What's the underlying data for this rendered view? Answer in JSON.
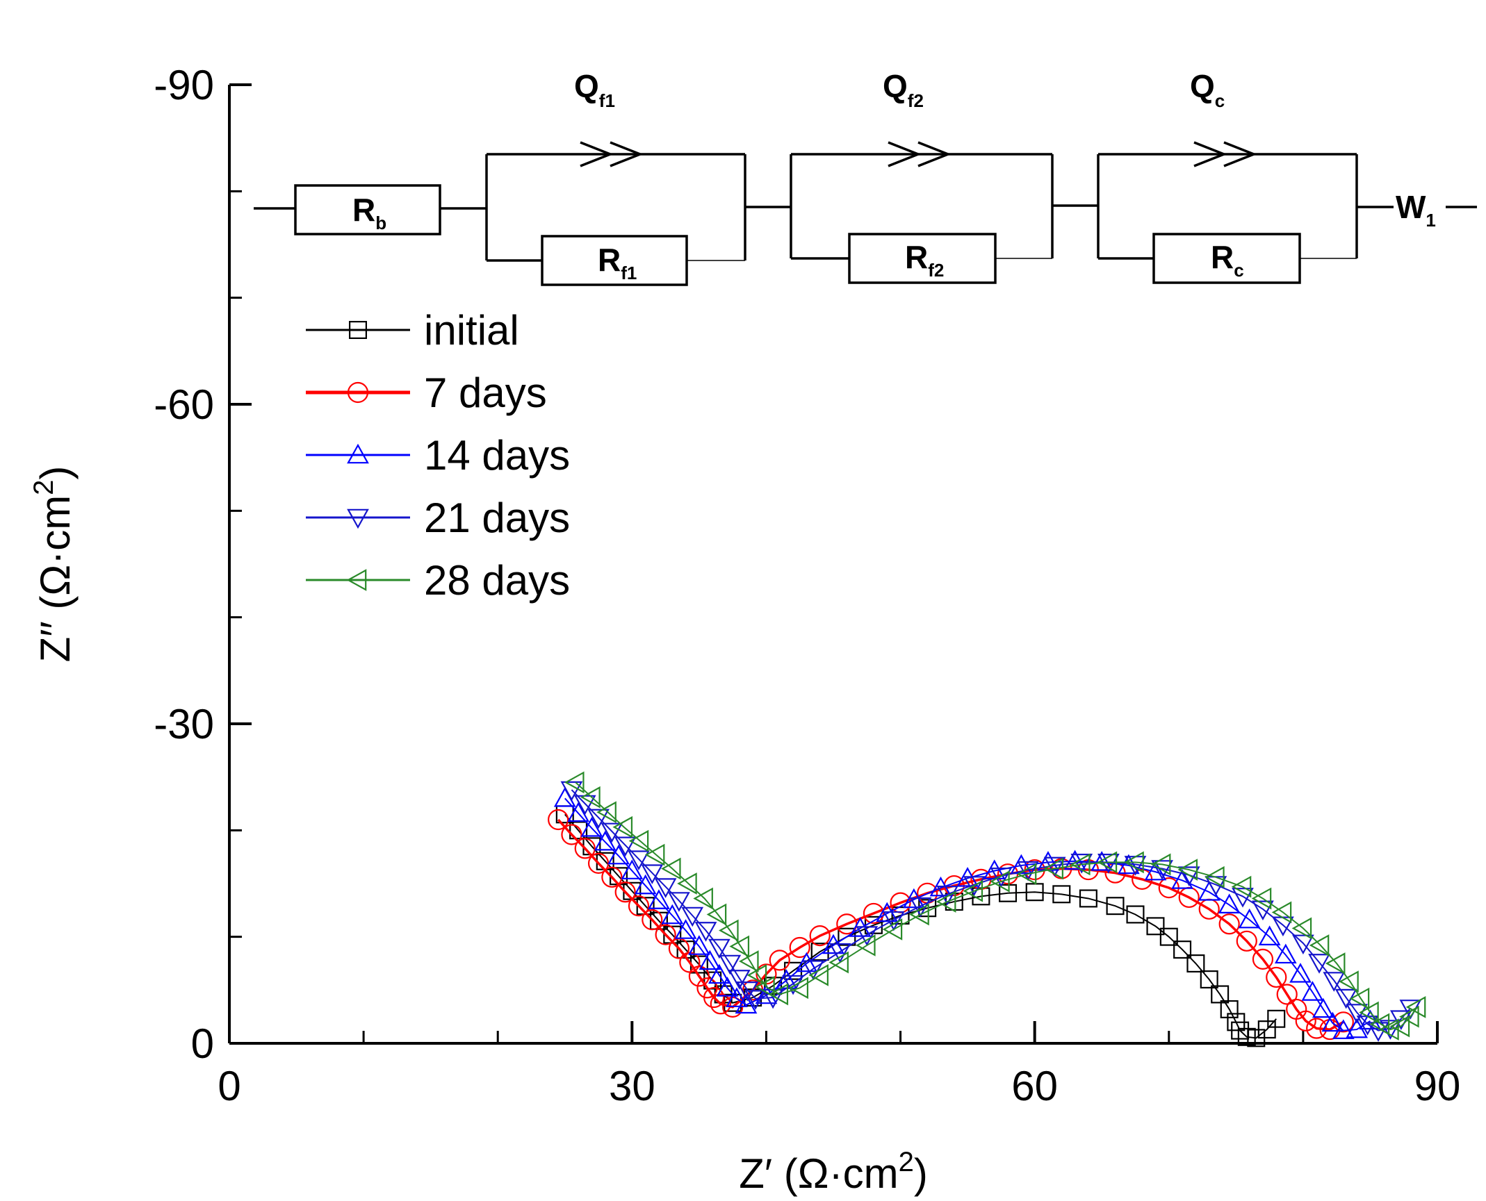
{
  "chart_data": {
    "type": "scatter",
    "title": "",
    "xlabel": "Z′ (Ω·cm²)",
    "ylabel": "Z′′ (Ω·cm²)",
    "xlim": [
      0,
      90
    ],
    "ylim": [
      0,
      -90
    ],
    "x_ticks": [
      0,
      30,
      60,
      90
    ],
    "y_ticks": [
      0,
      -30,
      -60,
      -90
    ],
    "x_tick_labels": [
      "0",
      "30",
      "60",
      "90"
    ],
    "y_tick_labels": [
      "0",
      "-30",
      "-60",
      "-90"
    ],
    "legend_position": "upper-left",
    "series": [
      {
        "name": "initial",
        "color": "#000000",
        "marker": "square",
        "points": [
          [
            25.0,
            -21.5
          ],
          [
            26.0,
            -20.0
          ],
          [
            27.0,
            -18.5
          ],
          [
            28.0,
            -17.1
          ],
          [
            29.0,
            -15.7
          ],
          [
            30.0,
            -14.3
          ],
          [
            31.0,
            -12.9
          ],
          [
            32.0,
            -11.5
          ],
          [
            33.0,
            -10.2
          ],
          [
            34.0,
            -8.8
          ],
          [
            35.0,
            -7.4
          ],
          [
            36.0,
            -5.9
          ],
          [
            36.8,
            -4.6
          ],
          [
            37.5,
            -3.8
          ],
          [
            39.0,
            -4.3
          ],
          [
            40.5,
            -5.4
          ],
          [
            42.0,
            -6.8
          ],
          [
            44.0,
            -8.6
          ],
          [
            46.0,
            -10.0
          ],
          [
            48.0,
            -11.1
          ],
          [
            50.0,
            -12.0
          ],
          [
            52.0,
            -12.7
          ],
          [
            54.0,
            -13.3
          ],
          [
            56.0,
            -13.8
          ],
          [
            58.0,
            -14.1
          ],
          [
            60.0,
            -14.2
          ],
          [
            62.0,
            -14.0
          ],
          [
            64.0,
            -13.6
          ],
          [
            66.0,
            -12.9
          ],
          [
            67.5,
            -12.1
          ],
          [
            69.0,
            -11.0
          ],
          [
            70.0,
            -10.0
          ],
          [
            71.0,
            -8.8
          ],
          [
            72.0,
            -7.5
          ],
          [
            73.0,
            -6.0
          ],
          [
            73.8,
            -4.6
          ],
          [
            74.5,
            -3.2
          ],
          [
            75.0,
            -2.0
          ],
          [
            75.3,
            -1.2
          ],
          [
            75.8,
            -0.6
          ],
          [
            76.5,
            -0.5
          ],
          [
            77.3,
            -1.3
          ],
          [
            78.0,
            -2.3
          ]
        ]
      },
      {
        "name": "7 days",
        "color": "#ff0000",
        "marker": "circle",
        "points": [
          [
            24.5,
            -21.0
          ],
          [
            25.5,
            -19.6
          ],
          [
            26.5,
            -18.3
          ],
          [
            27.5,
            -16.9
          ],
          [
            28.5,
            -15.6
          ],
          [
            29.5,
            -14.2
          ],
          [
            30.5,
            -12.9
          ],
          [
            31.5,
            -11.6
          ],
          [
            32.5,
            -10.2
          ],
          [
            33.5,
            -8.9
          ],
          [
            34.3,
            -7.6
          ],
          [
            35.0,
            -6.3
          ],
          [
            35.6,
            -5.2
          ],
          [
            36.1,
            -4.3
          ],
          [
            36.6,
            -3.7
          ],
          [
            37.5,
            -3.4
          ],
          [
            39.0,
            -5.0
          ],
          [
            40.0,
            -6.5
          ],
          [
            41.0,
            -7.8
          ],
          [
            42.5,
            -9.0
          ],
          [
            44.0,
            -10.1
          ],
          [
            46.0,
            -11.2
          ],
          [
            48.0,
            -12.2
          ],
          [
            50.0,
            -13.2
          ],
          [
            52.0,
            -14.1
          ],
          [
            54.0,
            -14.8
          ],
          [
            56.0,
            -15.4
          ],
          [
            58.0,
            -15.9
          ],
          [
            60.0,
            -16.3
          ],
          [
            62.0,
            -16.4
          ],
          [
            64.0,
            -16.3
          ],
          [
            66.0,
            -16.0
          ],
          [
            68.0,
            -15.4
          ],
          [
            70.0,
            -14.6
          ],
          [
            71.5,
            -13.7
          ],
          [
            73.0,
            -12.6
          ],
          [
            74.5,
            -11.2
          ],
          [
            75.8,
            -9.6
          ],
          [
            77.0,
            -7.9
          ],
          [
            78.0,
            -6.2
          ],
          [
            78.8,
            -4.6
          ],
          [
            79.5,
            -3.2
          ],
          [
            80.2,
            -2.1
          ],
          [
            81.0,
            -1.4
          ],
          [
            82.0,
            -1.3
          ],
          [
            83.0,
            -2.0
          ]
        ]
      },
      {
        "name": "14 days",
        "color": "#0000ff",
        "marker": "triangle-up",
        "points": [
          [
            25.0,
            -23.0
          ],
          [
            26.0,
            -21.6
          ],
          [
            27.0,
            -20.2
          ],
          [
            28.0,
            -18.9
          ],
          [
            29.0,
            -17.6
          ],
          [
            30.0,
            -16.2
          ],
          [
            31.0,
            -14.8
          ],
          [
            32.0,
            -13.4
          ],
          [
            33.0,
            -12.0
          ],
          [
            34.0,
            -10.6
          ],
          [
            35.0,
            -9.1
          ],
          [
            35.8,
            -7.7
          ],
          [
            36.5,
            -6.4
          ],
          [
            37.1,
            -5.2
          ],
          [
            37.8,
            -4.2
          ],
          [
            38.5,
            -3.6
          ],
          [
            40.0,
            -4.5
          ],
          [
            41.5,
            -5.9
          ],
          [
            43.0,
            -7.5
          ],
          [
            45.0,
            -9.2
          ],
          [
            47.0,
            -10.8
          ],
          [
            49.0,
            -12.2
          ],
          [
            51.0,
            -13.5
          ],
          [
            53.0,
            -14.6
          ],
          [
            55.0,
            -15.5
          ],
          [
            57.0,
            -16.2
          ],
          [
            59.0,
            -16.7
          ],
          [
            61.0,
            -17.0
          ],
          [
            63.0,
            -17.1
          ],
          [
            65.0,
            -17.0
          ],
          [
            67.0,
            -16.7
          ],
          [
            69.0,
            -16.1
          ],
          [
            71.0,
            -15.3
          ],
          [
            73.0,
            -14.2
          ],
          [
            74.5,
            -13.0
          ],
          [
            76.0,
            -11.6
          ],
          [
            77.5,
            -10.0
          ],
          [
            78.7,
            -8.3
          ],
          [
            79.8,
            -6.5
          ],
          [
            80.7,
            -4.8
          ],
          [
            81.5,
            -3.2
          ],
          [
            82.2,
            -1.9
          ],
          [
            83.0,
            -1.2
          ],
          [
            84.0,
            -1.3
          ],
          [
            85.0,
            -2.1
          ]
        ]
      },
      {
        "name": "21 days",
        "color": "#1515cc",
        "marker": "triangle-down",
        "points": [
          [
            25.5,
            -23.8
          ],
          [
            26.5,
            -22.5
          ],
          [
            27.5,
            -21.2
          ],
          [
            28.5,
            -19.9
          ],
          [
            29.5,
            -18.6
          ],
          [
            30.5,
            -17.3
          ],
          [
            31.5,
            -16.0
          ],
          [
            32.5,
            -14.7
          ],
          [
            33.5,
            -13.4
          ],
          [
            34.5,
            -12.0
          ],
          [
            35.5,
            -10.6
          ],
          [
            36.5,
            -9.0
          ],
          [
            37.3,
            -7.5
          ],
          [
            38.0,
            -6.1
          ],
          [
            38.6,
            -5.0
          ],
          [
            39.2,
            -4.2
          ],
          [
            40.5,
            -4.3
          ],
          [
            42.0,
            -5.6
          ],
          [
            43.5,
            -7.0
          ],
          [
            45.5,
            -8.6
          ],
          [
            47.5,
            -10.2
          ],
          [
            49.5,
            -11.6
          ],
          [
            51.5,
            -12.9
          ],
          [
            53.5,
            -14.0
          ],
          [
            55.5,
            -14.9
          ],
          [
            57.5,
            -15.7
          ],
          [
            59.5,
            -16.3
          ],
          [
            61.5,
            -16.7
          ],
          [
            63.5,
            -17.0
          ],
          [
            65.5,
            -17.0
          ],
          [
            67.5,
            -16.8
          ],
          [
            69.5,
            -16.4
          ],
          [
            71.5,
            -15.8
          ],
          [
            73.5,
            -14.9
          ],
          [
            75.5,
            -13.8
          ],
          [
            77.0,
            -12.6
          ],
          [
            78.5,
            -11.1
          ],
          [
            80.0,
            -9.4
          ],
          [
            81.2,
            -7.6
          ],
          [
            82.3,
            -5.9
          ],
          [
            83.2,
            -4.3
          ],
          [
            84.0,
            -2.9
          ],
          [
            84.8,
            -1.8
          ],
          [
            85.6,
            -1.2
          ],
          [
            86.5,
            -1.4
          ],
          [
            87.3,
            -2.3
          ],
          [
            88.0,
            -3.3
          ]
        ]
      },
      {
        "name": "28 days",
        "color": "#2a8a2a",
        "marker": "triangle-left",
        "points": [
          [
            25.8,
            -24.5
          ],
          [
            27.0,
            -23.1
          ],
          [
            28.2,
            -21.7
          ],
          [
            29.4,
            -20.3
          ],
          [
            30.6,
            -19.0
          ],
          [
            31.8,
            -17.7
          ],
          [
            33.0,
            -16.4
          ],
          [
            34.2,
            -15.0
          ],
          [
            35.4,
            -13.6
          ],
          [
            36.4,
            -12.1
          ],
          [
            37.3,
            -10.6
          ],
          [
            38.1,
            -9.1
          ],
          [
            38.8,
            -7.7
          ],
          [
            39.4,
            -6.4
          ],
          [
            40.0,
            -5.3
          ],
          [
            41.0,
            -4.6
          ],
          [
            42.5,
            -5.2
          ],
          [
            44.0,
            -6.4
          ],
          [
            45.5,
            -7.6
          ],
          [
            47.5,
            -9.2
          ],
          [
            49.5,
            -10.7
          ],
          [
            51.5,
            -12.1
          ],
          [
            53.5,
            -13.3
          ],
          [
            55.5,
            -14.3
          ],
          [
            57.5,
            -15.2
          ],
          [
            59.5,
            -15.9
          ],
          [
            61.5,
            -16.4
          ],
          [
            63.5,
            -16.8
          ],
          [
            65.5,
            -17.0
          ],
          [
            67.5,
            -17.0
          ],
          [
            69.5,
            -16.8
          ],
          [
            71.5,
            -16.3
          ],
          [
            73.5,
            -15.6
          ],
          [
            75.5,
            -14.7
          ],
          [
            77.0,
            -13.6
          ],
          [
            78.5,
            -12.3
          ],
          [
            80.0,
            -10.8
          ],
          [
            81.3,
            -9.2
          ],
          [
            82.5,
            -7.5
          ],
          [
            83.5,
            -5.8
          ],
          [
            84.3,
            -4.2
          ],
          [
            85.0,
            -2.9
          ],
          [
            85.8,
            -1.8
          ],
          [
            86.5,
            -1.3
          ],
          [
            87.3,
            -1.6
          ],
          [
            88.0,
            -2.5
          ],
          [
            88.5,
            -3.4
          ]
        ]
      }
    ]
  },
  "circuit": {
    "labels": {
      "Rb": {
        "main": "R",
        "sub": "b"
      },
      "Qf1": {
        "main": "Q",
        "sub": "f1"
      },
      "Rf1": {
        "main": "R",
        "sub": "f1"
      },
      "Qf2": {
        "main": "Q",
        "sub": "f2"
      },
      "Rf2": {
        "main": "R",
        "sub": "f2"
      },
      "Qc": {
        "main": "Q",
        "sub": "c"
      },
      "Rc": {
        "main": "R",
        "sub": "c"
      },
      "W1": {
        "main": "W",
        "sub": "1"
      }
    }
  }
}
